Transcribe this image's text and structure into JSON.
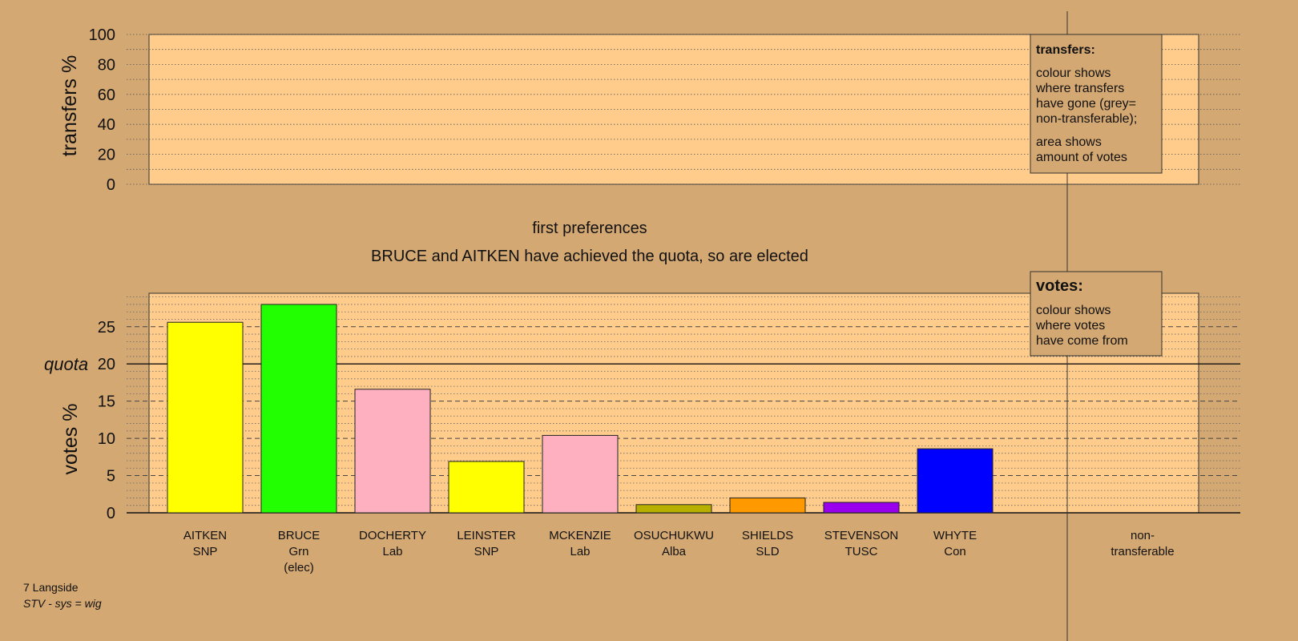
{
  "chart_data": [
    {
      "type": "bar",
      "panel": "transfers",
      "ylabel": "transfers %",
      "ylim": [
        0,
        100
      ],
      "yticks": [
        0,
        20,
        40,
        60,
        80,
        100
      ],
      "categories": [],
      "values": [],
      "legend": {
        "title": "transfers:",
        "lines": [
          "colour shows",
          "where transfers",
          "have gone (grey=",
          "non-transferable);",
          "area shows",
          "amount of votes"
        ]
      }
    },
    {
      "type": "bar",
      "panel": "votes",
      "title": "first preferences",
      "subtitle": "BRUCE and AITKEN have achieved the quota, so are elected",
      "ylabel": "votes %",
      "ylim": [
        0,
        29.5
      ],
      "yticks": [
        0,
        5,
        10,
        15,
        20,
        25
      ],
      "quota": {
        "label": "quota",
        "value": 20
      },
      "categories": [
        {
          "name": "AITKEN",
          "party": "SNP",
          "note": ""
        },
        {
          "name": "BRUCE",
          "party": "Grn",
          "note": "(elec)"
        },
        {
          "name": "DOCHERTY",
          "party": "Lab",
          "note": ""
        },
        {
          "name": "LEINSTER",
          "party": "SNP",
          "note": ""
        },
        {
          "name": "MCKENZIE",
          "party": "Lab",
          "note": ""
        },
        {
          "name": "OSUCHUKWU",
          "party": "Alba",
          "note": ""
        },
        {
          "name": "SHIELDS",
          "party": "SLD",
          "note": ""
        },
        {
          "name": "STEVENSON",
          "party": "TUSC",
          "note": ""
        },
        {
          "name": "WHYTE",
          "party": "Con",
          "note": ""
        }
      ],
      "values": [
        25.6,
        28.0,
        16.6,
        6.9,
        10.4,
        1.1,
        2.0,
        1.4,
        8.6
      ],
      "colors": [
        "#FFFF00",
        "#22FF00",
        "#FFB0C0",
        "#FFFF00",
        "#FFB0C0",
        "#B8B000",
        "#FF9900",
        "#9900EE",
        "#0000FF"
      ],
      "nontransferable_label": [
        "non-",
        "transferable"
      ],
      "legend": {
        "title": "votes:",
        "lines": [
          "colour shows",
          "where votes",
          "have come from"
        ]
      }
    }
  ],
  "footer": {
    "ward": "7 Langside",
    "system": "STV - sys = wig"
  }
}
